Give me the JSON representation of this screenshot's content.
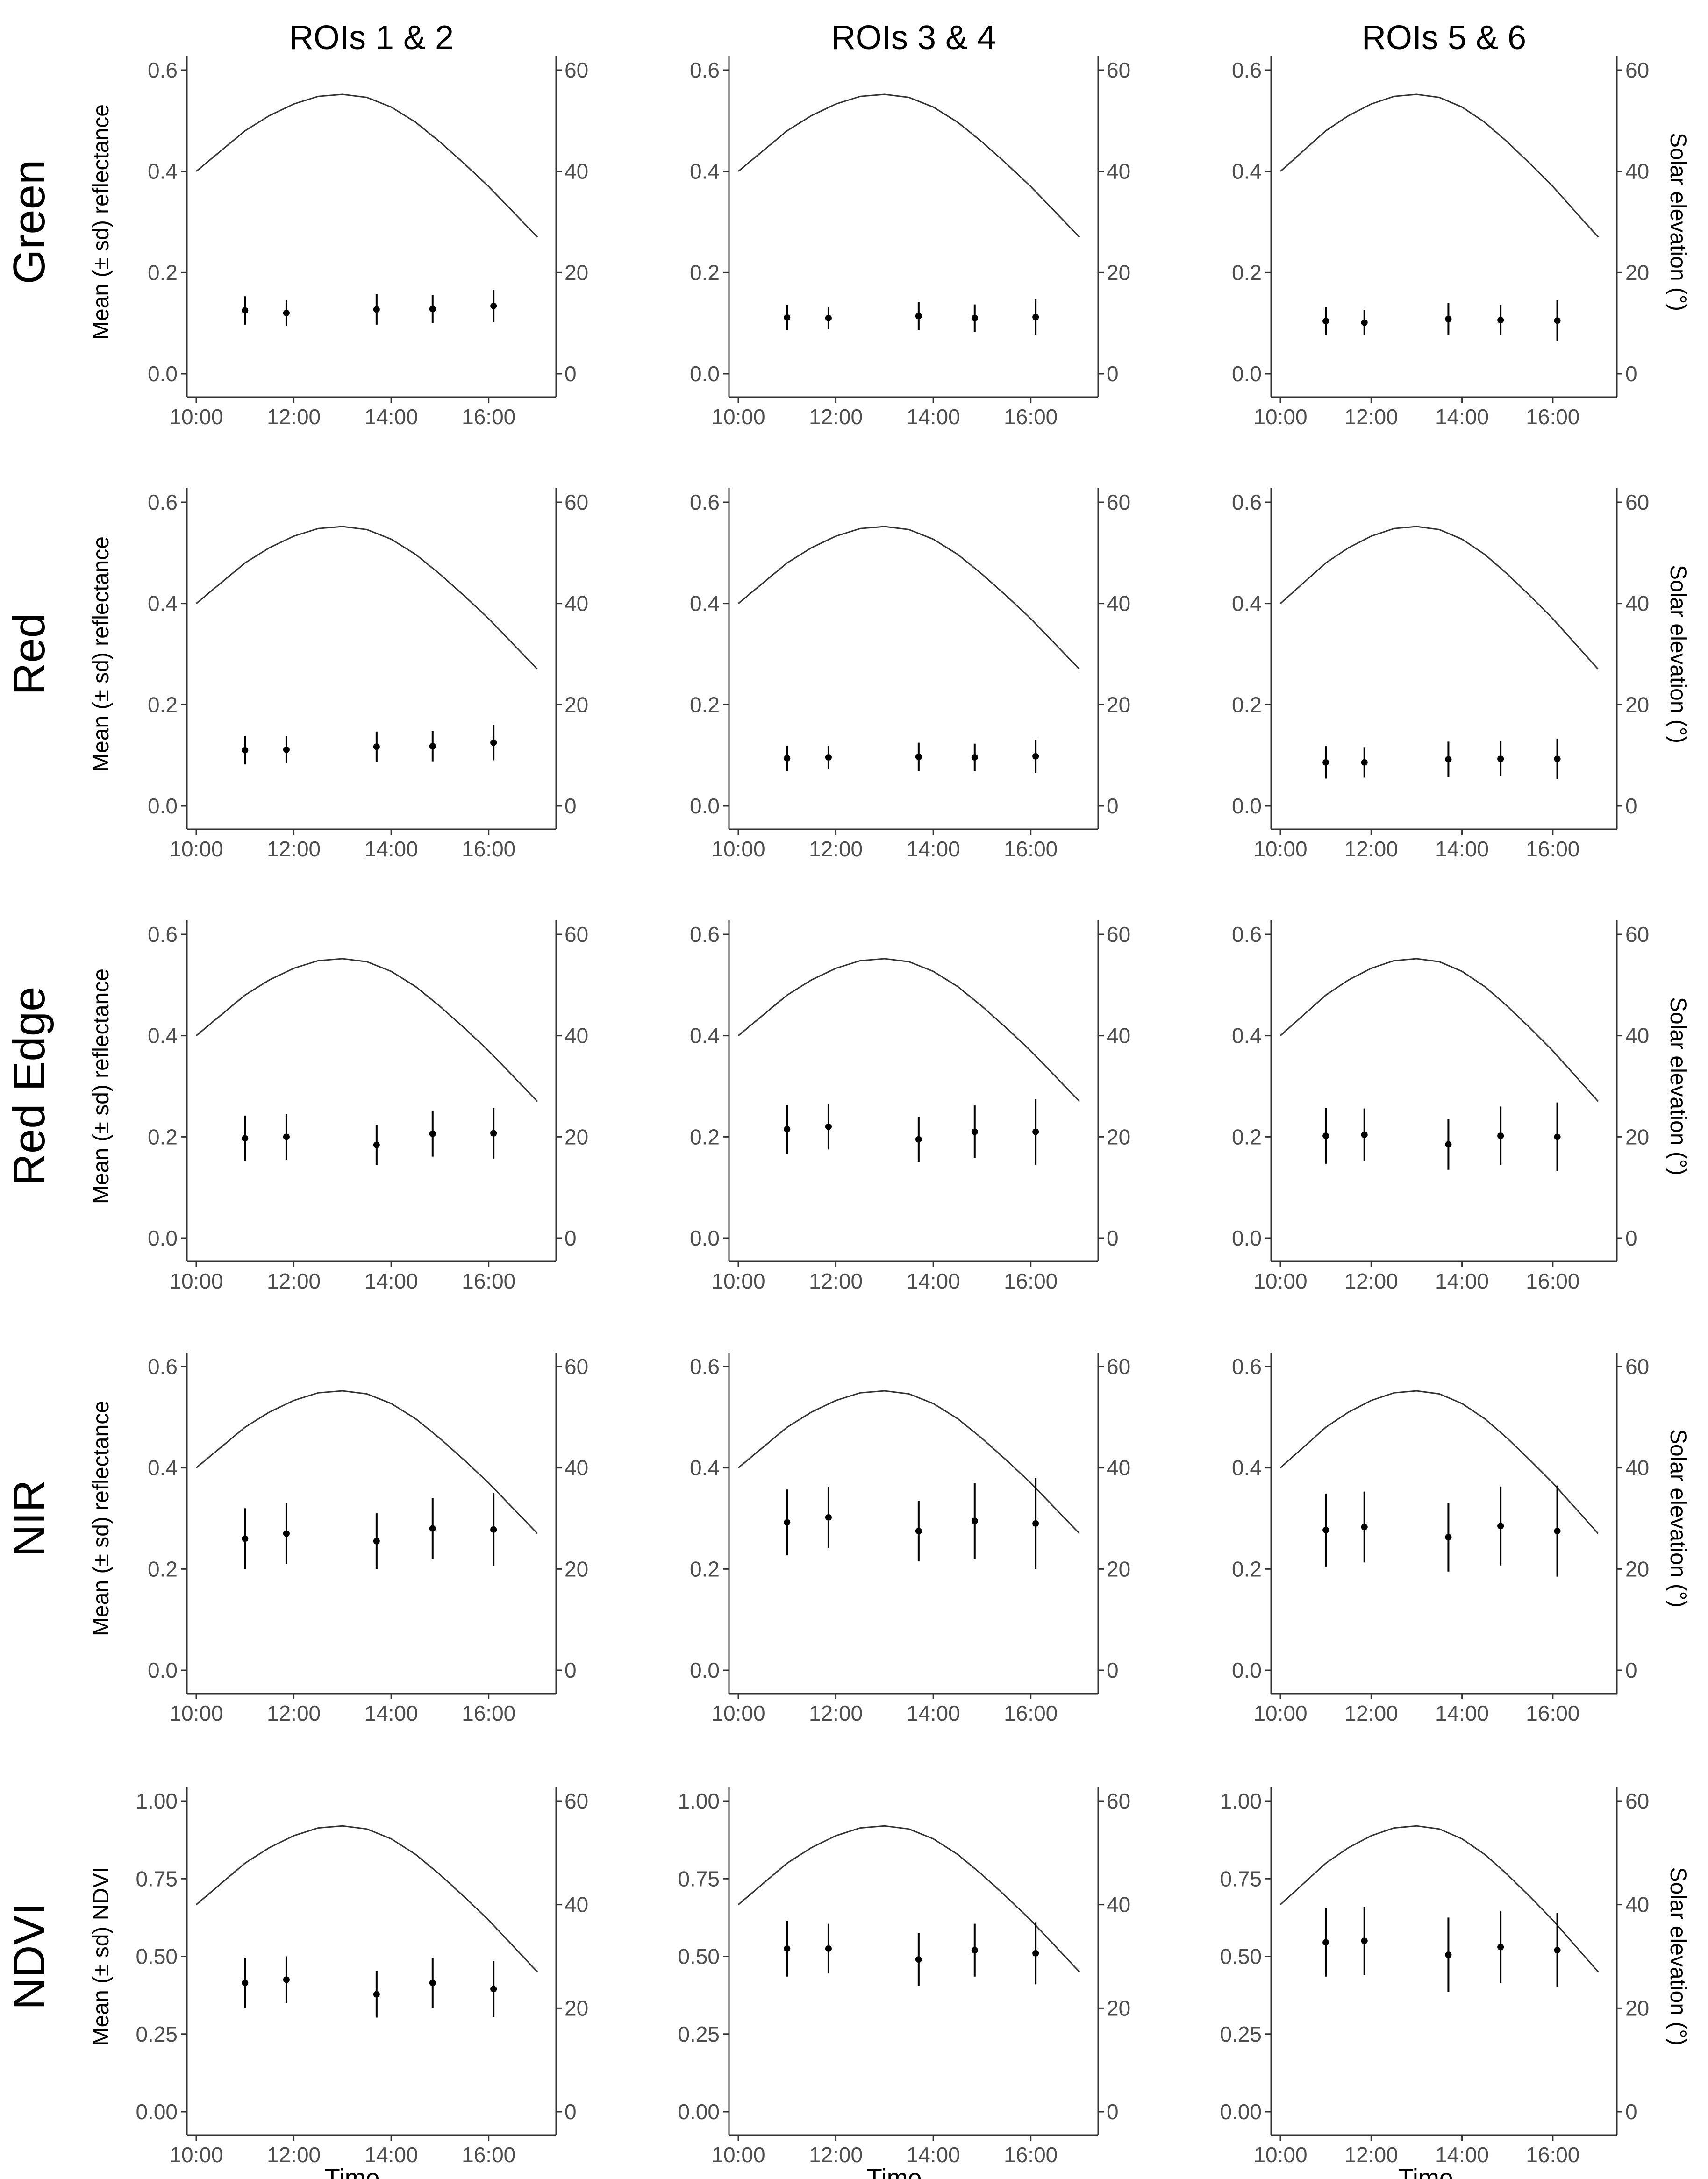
{
  "chart_data": {
    "type": "scatter",
    "description_of_layout_words": "5x3 facet grid; each panel has mean (± sd) points with error bars on left axis and solar elevation curve on right axis",
    "columns": [
      "ROIs 1 & 2",
      "ROIs 3 & 4",
      "ROIs 5 & 6"
    ],
    "rows": [
      "Green",
      "Red",
      "Red Edge",
      "NIR",
      "NDVI"
    ],
    "xlabel": "Time",
    "x_ticks": [
      "10:00",
      "12:00",
      "14:00",
      "16:00"
    ],
    "x_range_hours": [
      10,
      17
    ],
    "ylabel_reflectance": "Mean (± sd) reflectance",
    "ylabel_ndvi": "Mean (± sd) NDVI",
    "y2label": "Solar elevation (°)",
    "y_ticks_reflectance": [
      "0.0",
      "0.2",
      "0.4",
      "0.6"
    ],
    "y_ticks_ndvi": [
      "0.00",
      "0.25",
      "0.50",
      "0.75",
      "1.00"
    ],
    "y2_ticks": [
      "0",
      "20",
      "40",
      "60"
    ],
    "ylim_reflectance": [
      0,
      0.6
    ],
    "ylim_ndvi": [
      0,
      1
    ],
    "y2lim": [
      0,
      60
    ],
    "solar_elevation": {
      "x_hours": [
        10,
        10.5,
        11,
        11.5,
        12,
        12.5,
        13,
        13.5,
        14,
        14.5,
        15,
        15.5,
        16,
        16.5,
        17
      ],
      "values": [
        40,
        44,
        48,
        51,
        53.3,
        54.8,
        55.2,
        54.6,
        52.7,
        49.7,
        45.8,
        41.5,
        37,
        32,
        27
      ]
    },
    "point_times_hours": [
      11.0,
      11.85,
      13.7,
      14.85,
      16.1
    ],
    "panels": [
      {
        "row": "Green",
        "col": "ROIs 1 & 2",
        "means": [
          0.125,
          0.12,
          0.127,
          0.128,
          0.134
        ],
        "sd": [
          0.028,
          0.025,
          0.03,
          0.028,
          0.032
        ]
      },
      {
        "row": "Green",
        "col": "ROIs 3 & 4",
        "means": [
          0.111,
          0.11,
          0.114,
          0.11,
          0.112
        ],
        "sd": [
          0.025,
          0.022,
          0.028,
          0.027,
          0.035
        ]
      },
      {
        "row": "Green",
        "col": "ROIs 5 & 6",
        "means": [
          0.104,
          0.101,
          0.108,
          0.106,
          0.105
        ],
        "sd": [
          0.028,
          0.025,
          0.032,
          0.03,
          0.04
        ]
      },
      {
        "row": "Red",
        "col": "ROIs 1 & 2",
        "means": [
          0.11,
          0.111,
          0.117,
          0.118,
          0.125
        ],
        "sd": [
          0.028,
          0.027,
          0.03,
          0.03,
          0.035
        ]
      },
      {
        "row": "Red",
        "col": "ROIs 3 & 4",
        "means": [
          0.094,
          0.096,
          0.097,
          0.096,
          0.098
        ],
        "sd": [
          0.025,
          0.023,
          0.028,
          0.027,
          0.033
        ]
      },
      {
        "row": "Red",
        "col": "ROIs 5 & 6",
        "means": [
          0.086,
          0.086,
          0.092,
          0.093,
          0.093
        ],
        "sd": [
          0.032,
          0.03,
          0.035,
          0.035,
          0.04
        ]
      },
      {
        "row": "Red Edge",
        "col": "ROIs 1 & 2",
        "means": [
          0.197,
          0.2,
          0.184,
          0.206,
          0.207
        ],
        "sd": [
          0.045,
          0.045,
          0.04,
          0.045,
          0.05
        ]
      },
      {
        "row": "Red Edge",
        "col": "ROIs 3 & 4",
        "means": [
          0.215,
          0.22,
          0.195,
          0.21,
          0.21
        ],
        "sd": [
          0.048,
          0.045,
          0.045,
          0.052,
          0.065
        ]
      },
      {
        "row": "Red Edge",
        "col": "ROIs 5 & 6",
        "means": [
          0.202,
          0.204,
          0.185,
          0.202,
          0.2
        ],
        "sd": [
          0.055,
          0.052,
          0.05,
          0.058,
          0.068
        ]
      },
      {
        "row": "NIR",
        "col": "ROIs 1 & 2",
        "means": [
          0.26,
          0.27,
          0.255,
          0.28,
          0.278
        ],
        "sd": [
          0.06,
          0.06,
          0.055,
          0.06,
          0.072
        ]
      },
      {
        "row": "NIR",
        "col": "ROIs 3 & 4",
        "means": [
          0.292,
          0.302,
          0.275,
          0.295,
          0.29
        ],
        "sd": [
          0.065,
          0.06,
          0.06,
          0.075,
          0.09
        ]
      },
      {
        "row": "NIR",
        "col": "ROIs 5 & 6",
        "means": [
          0.277,
          0.283,
          0.263,
          0.285,
          0.275
        ],
        "sd": [
          0.072,
          0.07,
          0.068,
          0.078,
          0.09
        ]
      },
      {
        "row": "NDVI",
        "col": "ROIs 1 & 2",
        "means": [
          0.415,
          0.425,
          0.378,
          0.415,
          0.395
        ],
        "sd": [
          0.08,
          0.075,
          0.075,
          0.08,
          0.09
        ]
      },
      {
        "row": "NDVI",
        "col": "ROIs 3 & 4",
        "means": [
          0.525,
          0.525,
          0.49,
          0.52,
          0.51
        ],
        "sd": [
          0.09,
          0.08,
          0.085,
          0.085,
          0.1
        ]
      },
      {
        "row": "NDVI",
        "col": "ROIs 5 & 6",
        "means": [
          0.545,
          0.55,
          0.505,
          0.53,
          0.52
        ],
        "sd": [
          0.11,
          0.11,
          0.12,
          0.115,
          0.12
        ]
      }
    ]
  }
}
